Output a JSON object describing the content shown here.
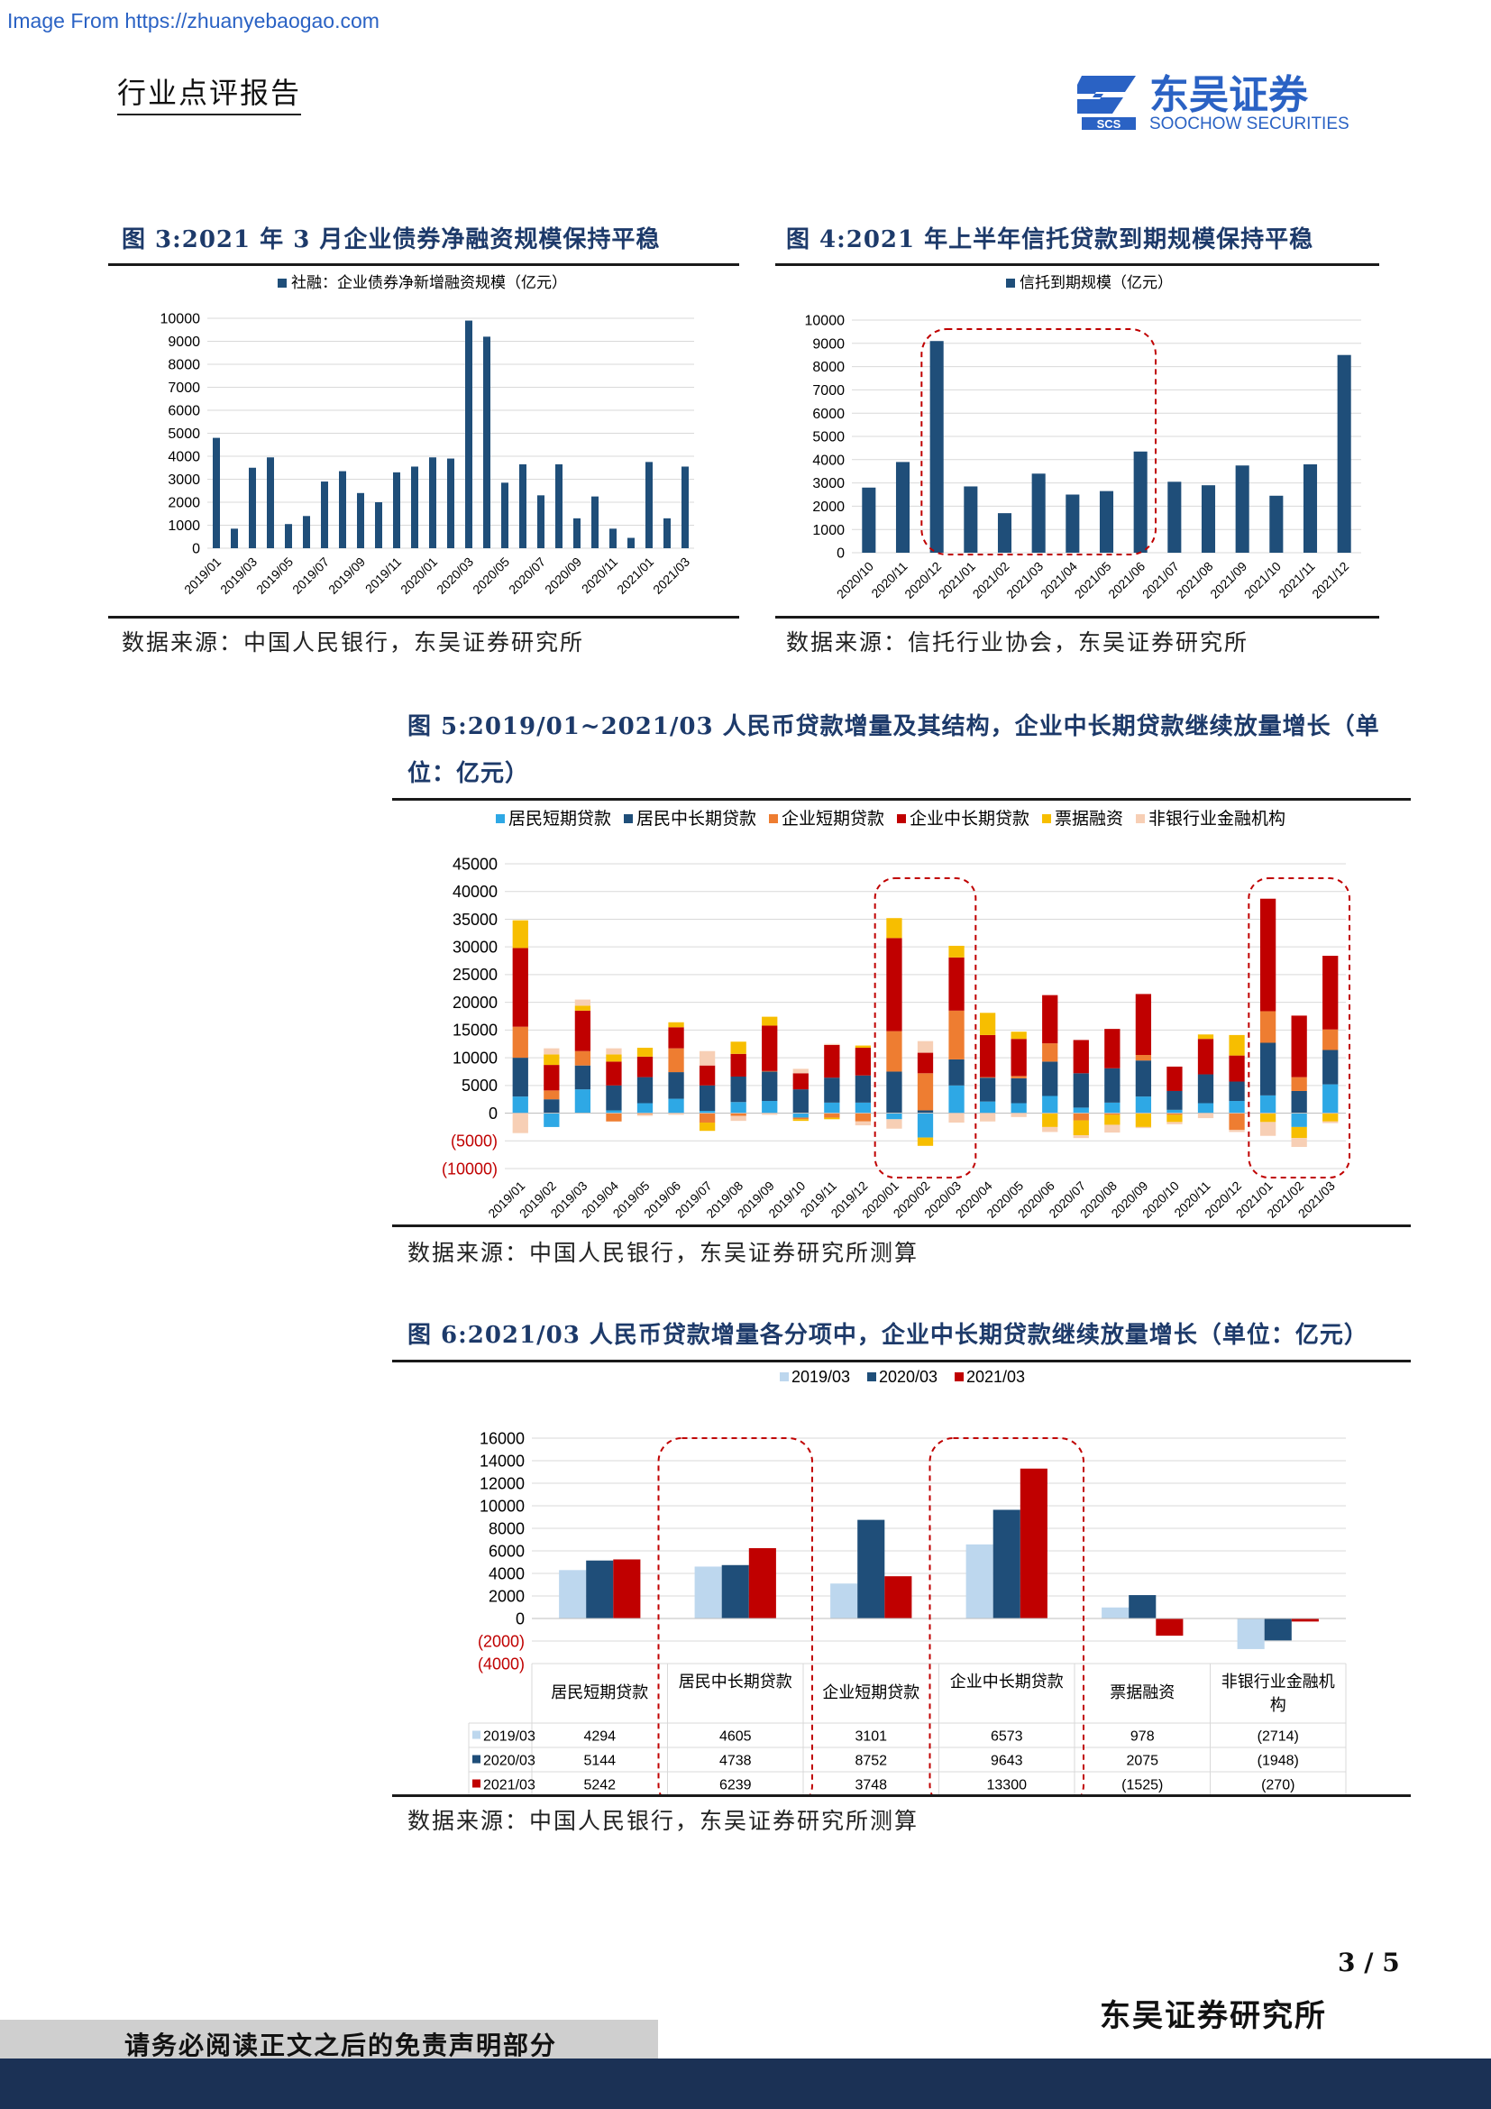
{
  "header": {
    "watermark": "Image From https://zhuanyebaogao.com",
    "doc_type": "行业点评报告",
    "logo_cn": "东吴证券",
    "logo_en": "SOOCHOW SECURITIES",
    "logo_abbr": "SCS"
  },
  "figures": [
    {
      "title": "图 3:2021 年 3 月企业债券净融资规模保持平稳",
      "source": "数据来源：中国人民银行，东吴证券研究所"
    },
    {
      "title": "图 4:2021 年上半年信托贷款到期规模保持平稳",
      "source": "数据来源：信托行业协会，东吴证券研究所"
    },
    {
      "title": "图 5:2019/01~2021/03 人民币贷款增量及其结构，企业中长期贷款继续放量增长（单位：亿元）",
      "source": "数据来源：中国人民银行，东吴证券研究所测算"
    },
    {
      "title": "图 6:2021/03 人民币贷款增量各分项中，企业中长期贷款继续放量增长（单位：亿元）",
      "source": "数据来源：中国人民银行，东吴证券研究所测算"
    }
  ],
  "footer": {
    "page": "3 / 5",
    "org": "东吴证券研究所",
    "disclaimer": "请务必阅读正文之后的免责声明部分"
  },
  "chart_data": [
    {
      "type": "bar",
      "legend": "社融：企业债券净新增融资规模（亿元）",
      "color": "#1f4e79",
      "x": [
        "2019/01",
        "2019/02",
        "2019/03",
        "2019/04",
        "2019/05",
        "2019/06",
        "2019/07",
        "2019/08",
        "2019/09",
        "2019/10",
        "2019/11",
        "2019/12",
        "2020/01",
        "2020/02",
        "2020/03",
        "2020/04",
        "2020/05",
        "2020/06",
        "2020/07",
        "2020/08",
        "2020/09",
        "2020/10",
        "2020/11",
        "2020/12",
        "2021/01",
        "2021/02",
        "2021/03"
      ],
      "xticks": [
        "2019/01",
        "2019/03",
        "2019/05",
        "2019/07",
        "2019/09",
        "2019/11",
        "2020/01",
        "2020/03",
        "2020/05",
        "2020/07",
        "2020/09",
        "2020/11",
        "2021/01",
        "2021/03"
      ],
      "values": [
        4800,
        850,
        3500,
        3950,
        1050,
        1400,
        2900,
        3350,
        2400,
        2000,
        3300,
        3550,
        3950,
        3900,
        9900,
        9200,
        2850,
        3650,
        2300,
        3650,
        1300,
        2250,
        850,
        450,
        3750,
        1300,
        3550
      ],
      "yticks": [
        "0",
        "1000",
        "2000",
        "3000",
        "4000",
        "5000",
        "6000",
        "7000",
        "8000",
        "9000",
        "10000"
      ],
      "ylim": [
        0,
        10000
      ]
    },
    {
      "type": "bar",
      "legend": "信托到期规模（亿元）",
      "color": "#1f4e79",
      "categories": [
        "2020/10",
        "2020/11",
        "2020/12",
        "2021/01",
        "2021/02",
        "2021/03",
        "2021/04",
        "2021/05",
        "2021/06",
        "2021/07",
        "2021/08",
        "2021/09",
        "2021/10",
        "2021/11",
        "2021/12"
      ],
      "values": [
        2800,
        3900,
        9100,
        2850,
        1700,
        3400,
        2500,
        2650,
        4350,
        3050,
        2900,
        3750,
        2450,
        3800,
        8500
      ],
      "yticks": [
        "0",
        "1000",
        "2000",
        "3000",
        "4000",
        "5000",
        "6000",
        "7000",
        "8000",
        "9000",
        "10000"
      ],
      "ylim": [
        0,
        10000
      ],
      "highlight": "2020/12–2021/06"
    },
    {
      "type": "bar",
      "stacked": true,
      "categories": [
        "2019/01",
        "2019/02",
        "2019/03",
        "2019/04",
        "2019/05",
        "2019/06",
        "2019/07",
        "2019/08",
        "2019/09",
        "2019/10",
        "2019/11",
        "2019/12",
        "2020/01",
        "2020/02",
        "2020/03",
        "2020/04",
        "2020/05",
        "2020/06",
        "2020/07",
        "2020/08",
        "2020/09",
        "2020/10",
        "2020/11",
        "2020/12",
        "2021/01",
        "2021/02",
        "2021/03"
      ],
      "series": [
        {
          "name": "居民短期贷款",
          "color": "#2ea8e5",
          "values": [
            3000,
            -2500,
            4300,
            500,
            1800,
            2600,
            400,
            2000,
            2200,
            -800,
            1900,
            1900,
            -1100,
            -4400,
            5000,
            2100,
            1800,
            3100,
            1000,
            1900,
            3000,
            600,
            1800,
            2200,
            3200,
            -2500,
            5200
          ]
        },
        {
          "name": "居民中长期贷款",
          "color": "#1f4e79",
          "values": [
            7000,
            2500,
            4300,
            4500,
            4700,
            4800,
            4600,
            4600,
            5300,
            4300,
            4500,
            4900,
            7500,
            500,
            4700,
            4300,
            4500,
            6200,
            6200,
            6200,
            6500,
            3400,
            5200,
            3500,
            9500,
            4000,
            6200
          ]
        },
        {
          "name": "企业短期贷款",
          "color": "#ee7d31",
          "values": [
            5600,
            1600,
            2600,
            -1500,
            -200,
            4300,
            -1700,
            -500,
            100,
            -300,
            -800,
            -1500,
            7300,
            6700,
            8800,
            100,
            400,
            3300,
            -1300,
            -300,
            1000,
            -300,
            -100,
            -3000,
            5700,
            2500,
            3700
          ]
        },
        {
          "name": "企业中长期贷款",
          "color": "#c00000",
          "values": [
            14200,
            4600,
            7300,
            4300,
            3700,
            3800,
            3600,
            4100,
            8200,
            2900,
            5900,
            5000,
            16800,
            3700,
            9600,
            7600,
            6700,
            8700,
            6000,
            7100,
            11000,
            4400,
            6400,
            4700,
            20300,
            11100,
            13300
          ]
        },
        {
          "name": "票据融资",
          "color": "#f7be00",
          "values": [
            5000,
            1900,
            900,
            1300,
            1600,
            900,
            -1500,
            2200,
            1600,
            -300,
            -300,
            400,
            3600,
            -1500,
            2100,
            4000,
            1300,
            -2500,
            -2700,
            -1800,
            -2500,
            -1300,
            800,
            3700,
            -1600,
            -2000,
            -1500
          ]
        },
        {
          "name": "非银行业金融机构",
          "color": "#f7cfb5",
          "values": [
            -3600,
            1100,
            1100,
            1100,
            -300,
            -300,
            2600,
            -900,
            -300,
            800,
            200,
            -700,
            -1700,
            2100,
            -1700,
            -1500,
            -700,
            -900,
            -500,
            -1400,
            -200,
            -400,
            -800,
            -400,
            -2500,
            -1600,
            -300
          ]
        }
      ],
      "yticks": [
        "(10000)",
        "(5000)",
        "0",
        "5000",
        "10000",
        "15000",
        "20000",
        "25000",
        "30000",
        "35000",
        "40000",
        "45000"
      ],
      "ylim": [
        -10000,
        45000
      ],
      "highlights": [
        "2020/01–2020/03",
        "2021/01–2021/03"
      ]
    },
    {
      "type": "bar",
      "categories": [
        "居民短期贷款",
        "居民中长期贷款",
        "企业短期贷款",
        "企业中长期贷款",
        "票据融资",
        "非银行业金融机构"
      ],
      "series": [
        {
          "name": "2019/03",
          "color": "#bdd7ee",
          "values": [
            4294,
            4605,
            3101,
            6573,
            978,
            -2714
          ],
          "labels": [
            "4294",
            "4605",
            "3101",
            "6573",
            "978",
            "(2714)"
          ]
        },
        {
          "name": "2020/03",
          "color": "#1f4e79",
          "values": [
            5144,
            4738,
            8752,
            9643,
            2075,
            -1948
          ],
          "labels": [
            "5144",
            "4738",
            "8752",
            "9643",
            "2075",
            "(1948)"
          ]
        },
        {
          "name": "2021/03",
          "color": "#c00000",
          "values": [
            5242,
            6239,
            3748,
            13300,
            -1525,
            -270
          ],
          "labels": [
            "5242",
            "6239",
            "3748",
            "13300",
            "(1525)",
            "(270)"
          ]
        }
      ],
      "yticks": [
        "(4000)",
        "(2000)",
        "0",
        "2000",
        "4000",
        "6000",
        "8000",
        "10000",
        "12000",
        "14000",
        "16000"
      ],
      "ylim": [
        -4000,
        16000
      ],
      "highlights": [
        "居民中长期贷款",
        "企业中长期贷款"
      ]
    }
  ]
}
